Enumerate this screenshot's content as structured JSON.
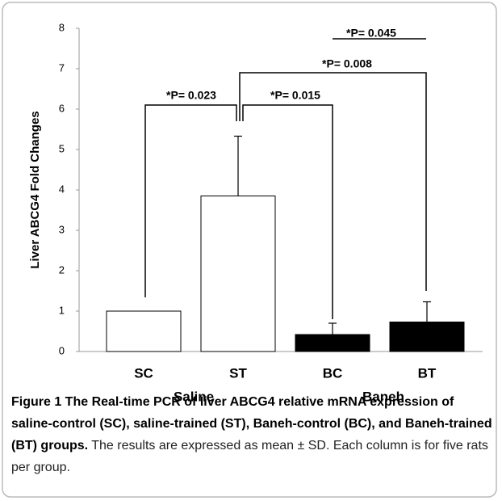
{
  "chart_data": {
    "type": "bar",
    "ylabel": "Liver ABCG4 Fold Changes",
    "categories": [
      "SC",
      "ST",
      "BC",
      "BT"
    ],
    "groups": [
      "Saline",
      "Baneh"
    ],
    "values": [
      1,
      3.85,
      0.42,
      0.73
    ],
    "errors": [
      0,
      1.48,
      0.28,
      0.5
    ],
    "colors": [
      "#ffffff",
      "#ffffff",
      "#000000",
      "#000000"
    ],
    "ylim": [
      0,
      8
    ],
    "yticks": [
      0,
      1,
      2,
      3,
      4,
      5,
      6,
      7,
      8
    ],
    "annotations": [
      "*P= 0.023",
      "*P= 0.015",
      "*P= 0.008",
      "*P= 0.045"
    ]
  },
  "caption": {
    "title": "Figure 1 The Real-time PCR of liver ABCG4 relative mRNA expression of saline-control (SC), saline-trained (ST), Baneh-control (BC), and Baneh-trained (BT) groups.",
    "text": "The results are expressed as mean ± SD. Each column is for five rats per group."
  }
}
